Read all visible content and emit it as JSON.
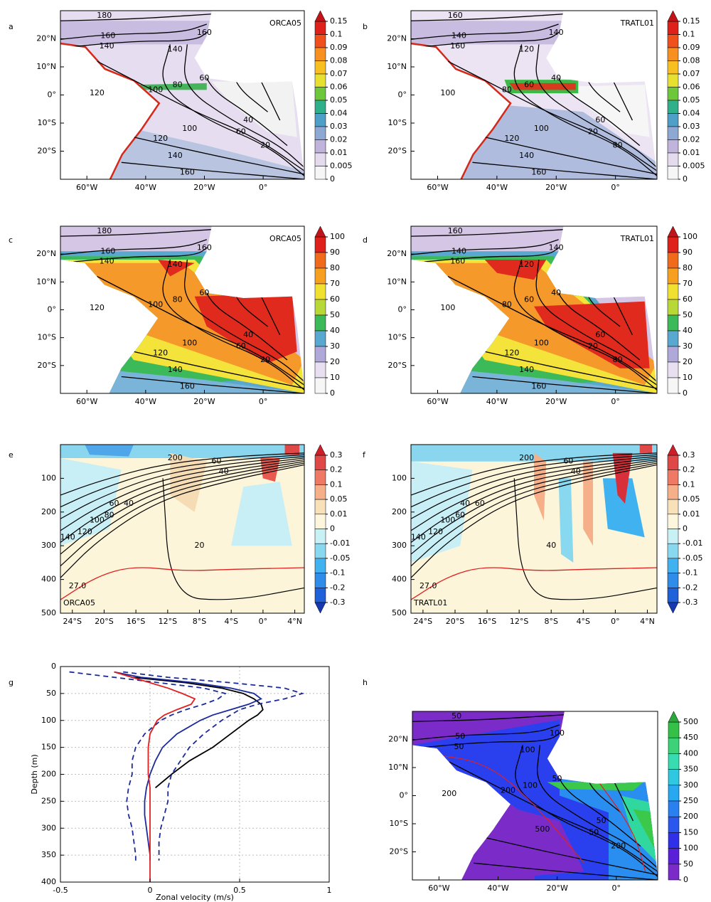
{
  "chart_data": [
    {
      "type": "map",
      "panel": "a",
      "title": "ORCA05",
      "xlim": [
        -69,
        14
      ],
      "ylim": [
        -30,
        30
      ],
      "xticks": [
        {
          "value": -60,
          "label": "60°W"
        },
        {
          "value": -40,
          "label": "40°W"
        },
        {
          "value": -20,
          "label": "20°W"
        },
        {
          "value": 0,
          "label": "0°"
        }
      ],
      "yticks": [
        {
          "value": 20,
          "label": "20°N"
        },
        {
          "value": 10,
          "label": "10°N"
        },
        {
          "value": 0,
          "label": "0°"
        },
        {
          "value": -10,
          "label": "10°S"
        },
        {
          "value": -20,
          "label": "20°S"
        }
      ],
      "colorbar": {
        "levels": [
          0.15,
          0.1,
          0.09,
          0.08,
          0.07,
          0.06,
          0.05,
          0.04,
          0.03,
          0.02,
          0.01,
          0.005,
          0
        ],
        "colors": [
          "#e0201a",
          "#f0501c",
          "#f7901e",
          "#f7c020",
          "#e8e030",
          "#6cc83a",
          "#2fb08a",
          "#4fa0c8",
          "#8ea8d4",
          "#c0b4dc",
          "#e4dcee",
          "#f6f6f6"
        ],
        "over": "#c01418"
      },
      "contour_labels": [
        180,
        160,
        140,
        160,
        140,
        120,
        100,
        80,
        60,
        40,
        60,
        20,
        100,
        120,
        140,
        160
      ]
    },
    {
      "type": "map",
      "panel": "b",
      "title": "TRATL01",
      "xlim": [
        -69,
        14
      ],
      "ylim": [
        -30,
        30
      ],
      "xticks": [
        {
          "value": -60,
          "label": "60°W"
        },
        {
          "value": -40,
          "label": "40°W"
        },
        {
          "value": -20,
          "label": "20°W"
        },
        {
          "value": 0,
          "label": "0°"
        }
      ],
      "yticks": [
        {
          "value": 20,
          "label": "20°N"
        },
        {
          "value": 10,
          "label": "10°N"
        },
        {
          "value": 0,
          "label": "0°"
        },
        {
          "value": -10,
          "label": "10°S"
        },
        {
          "value": -20,
          "label": "20°S"
        }
      ],
      "colorbar": {
        "levels": [
          0.15,
          0.1,
          0.09,
          0.08,
          0.07,
          0.06,
          0.05,
          0.04,
          0.03,
          0.02,
          0.01,
          0.005,
          0
        ],
        "colors": [
          "#e0201a",
          "#f0501c",
          "#f7901e",
          "#f7c020",
          "#e8e030",
          "#6cc83a",
          "#2fb08a",
          "#4fa0c8",
          "#8ea8d4",
          "#c0b4dc",
          "#e4dcee",
          "#f6f6f6"
        ],
        "over": "#c01418"
      },
      "contour_labels": [
        160,
        140,
        160,
        140,
        120,
        100,
        80,
        60,
        40,
        60,
        20,
        80,
        100,
        120,
        140,
        160
      ]
    },
    {
      "type": "map",
      "panel": "c",
      "title": "ORCA05",
      "xlim": [
        -69,
        14
      ],
      "ylim": [
        -30,
        30
      ],
      "xticks": [
        {
          "value": -60,
          "label": "60°W"
        },
        {
          "value": -40,
          "label": "40°W"
        },
        {
          "value": -20,
          "label": "20°W"
        },
        {
          "value": 0,
          "label": "0°"
        }
      ],
      "yticks": [
        {
          "value": 20,
          "label": "20°N"
        },
        {
          "value": 10,
          "label": "10°N"
        },
        {
          "value": 0,
          "label": "0°"
        },
        {
          "value": -10,
          "label": "10°S"
        },
        {
          "value": -20,
          "label": "20°S"
        }
      ],
      "colorbar": {
        "levels": [
          100,
          90,
          80,
          70,
          60,
          50,
          40,
          30,
          20,
          10,
          0
        ],
        "colors": [
          "#e0201a",
          "#f06a1c",
          "#f7a020",
          "#f0e030",
          "#b8d838",
          "#3cba5a",
          "#58a8d0",
          "#b0a8d8",
          "#e8e0f0",
          "#f6f6f6"
        ],
        "over": "#c01418"
      },
      "contour_labels": [
        180,
        160,
        140,
        160,
        140,
        120,
        100,
        80,
        60,
        40,
        60,
        20,
        100,
        120,
        140,
        160
      ]
    },
    {
      "type": "map",
      "panel": "d",
      "title": "TRATL01",
      "xlim": [
        -69,
        14
      ],
      "ylim": [
        -30,
        30
      ],
      "xticks": [
        {
          "value": -60,
          "label": "60°W"
        },
        {
          "value": -40,
          "label": "40°W"
        },
        {
          "value": -20,
          "label": "20°W"
        },
        {
          "value": 0,
          "label": "0°"
        }
      ],
      "yticks": [
        {
          "value": 20,
          "label": "20°N"
        },
        {
          "value": 10,
          "label": "10°N"
        },
        {
          "value": 0,
          "label": "0°"
        },
        {
          "value": -10,
          "label": "10°S"
        },
        {
          "value": -20,
          "label": "20°S"
        }
      ],
      "colorbar": {
        "levels": [
          100,
          90,
          80,
          70,
          60,
          50,
          40,
          30,
          20,
          10,
          0
        ],
        "colors": [
          "#e0201a",
          "#f06a1c",
          "#f7a020",
          "#f0e030",
          "#b8d838",
          "#3cba5a",
          "#58a8d0",
          "#b0a8d8",
          "#e8e0f0",
          "#f6f6f6"
        ],
        "over": "#c01418"
      },
      "contour_labels": [
        160,
        140,
        160,
        140,
        120,
        100,
        80,
        60,
        40,
        60,
        20,
        80,
        100,
        120,
        140,
        160
      ]
    },
    {
      "type": "section",
      "panel": "e",
      "title": "ORCA05",
      "xlim": [
        -25.5,
        5.2
      ],
      "ylim": [
        0,
        500
      ],
      "y_inverted": true,
      "xticks": [
        {
          "value": -24,
          "label": "24°S"
        },
        {
          "value": -20,
          "label": "20°S"
        },
        {
          "value": -16,
          "label": "16°S"
        },
        {
          "value": -12,
          "label": "12°S"
        },
        {
          "value": -8,
          "label": "8°S"
        },
        {
          "value": -4,
          "label": "4°S"
        },
        {
          "value": 0,
          "label": "0°"
        },
        {
          "value": 4,
          "label": "4°N"
        }
      ],
      "yticks": [
        100,
        200,
        300,
        400,
        500
      ],
      "colorbar": {
        "levels": [
          0.3,
          0.2,
          0.1,
          0.05,
          0.01,
          0,
          -0.01,
          -0.05,
          -0.1,
          -0.2,
          -0.3
        ],
        "colors": [
          "#e04848",
          "#ee7a66",
          "#f5b08a",
          "#f8e0b8",
          "#fdf6dc",
          "#c8f0f5",
          "#88d8f0",
          "#3fb2ef",
          "#2f8ce8",
          "#2060d8"
        ],
        "over": "#cc1f2a",
        "under": "#1838b0"
      },
      "contour_labels": [
        200,
        60,
        40,
        140,
        120,
        100,
        80,
        60,
        40,
        20,
        "27.0"
      ]
    },
    {
      "type": "section",
      "panel": "f",
      "title": "TRATL01",
      "xlim": [
        -25.5,
        5.2
      ],
      "ylim": [
        0,
        500
      ],
      "y_inverted": true,
      "xticks": [
        {
          "value": -24,
          "label": "24°S"
        },
        {
          "value": -20,
          "label": "20°S"
        },
        {
          "value": -16,
          "label": "16°S"
        },
        {
          "value": -12,
          "label": "12°S"
        },
        {
          "value": -8,
          "label": "8°S"
        },
        {
          "value": -4,
          "label": "4°S"
        },
        {
          "value": 0,
          "label": "0°"
        },
        {
          "value": 4,
          "label": "4°N"
        }
      ],
      "yticks": [
        100,
        200,
        300,
        400,
        500
      ],
      "colorbar": {
        "levels": [
          0.3,
          0.2,
          0.1,
          0.05,
          0.01,
          0,
          -0.01,
          -0.05,
          -0.1,
          -0.2,
          -0.3
        ],
        "colors": [
          "#e04848",
          "#ee7a66",
          "#f5b08a",
          "#f8e0b8",
          "#fdf6dc",
          "#c8f0f5",
          "#88d8f0",
          "#3fb2ef",
          "#2f8ce8",
          "#2060d8"
        ],
        "over": "#cc1f2a",
        "under": "#1838b0"
      },
      "contour_labels": [
        200,
        60,
        40,
        140,
        120,
        100,
        60,
        40,
        60,
        40,
        "27.0"
      ]
    },
    {
      "type": "line",
      "panel": "g",
      "xlabel": "Zonal velocity (m/s)",
      "ylabel": "Depth (m)",
      "xlim": [
        -0.5,
        1
      ],
      "ylim": [
        0,
        400
      ],
      "y_inverted": true,
      "grid": true,
      "xticks": [
        -0.5,
        0,
        0.5,
        1
      ],
      "yticks": [
        0,
        50,
        100,
        150,
        200,
        250,
        300,
        350,
        400
      ],
      "y": [
        10,
        20,
        30,
        40,
        50,
        60,
        70,
        80,
        90,
        100,
        125,
        150,
        175,
        200,
        225,
        250,
        275,
        300,
        325,
        350,
        360,
        400
      ],
      "series": [
        {
          "color": "#000000",
          "dashed": false,
          "values": [
            -0.2,
            -0.1,
            0.2,
            0.4,
            0.52,
            0.58,
            0.62,
            0.63,
            0.6,
            0.55,
            0.45,
            0.35,
            0.22,
            0.12,
            0.03,
            null,
            null,
            null,
            null,
            null,
            null,
            null
          ]
        },
        {
          "color": "#1a2a9a",
          "dashed": false,
          "values": [
            -0.2,
            -0.05,
            0.25,
            0.45,
            0.58,
            0.62,
            0.55,
            0.45,
            0.35,
            0.28,
            0.15,
            0.07,
            0.03,
            0.0,
            -0.02,
            -0.03,
            -0.03,
            -0.02,
            -0.01,
            0.0,
            0.0,
            null
          ]
        },
        {
          "color": "#1a2a9a",
          "dashed": true,
          "values": [
            -0.15,
            0.1,
            0.45,
            0.75,
            0.85,
            0.75,
            0.6,
            0.5,
            0.45,
            0.4,
            0.3,
            0.22,
            0.17,
            0.12,
            0.1,
            0.1,
            0.08,
            0.06,
            0.05,
            0.05,
            0.05,
            null
          ]
        },
        {
          "color": "#1a2a9a",
          "dashed": true,
          "values": [
            -0.45,
            -0.2,
            0.05,
            0.3,
            0.42,
            0.38,
            0.3,
            0.2,
            0.12,
            0.06,
            -0.03,
            -0.08,
            -0.1,
            -0.1,
            -0.12,
            -0.13,
            -0.12,
            -0.1,
            -0.09,
            -0.08,
            -0.08,
            null
          ]
        },
        {
          "color": "#e02020",
          "dashed": false,
          "values": [
            -0.2,
            -0.1,
            0.0,
            0.1,
            0.18,
            0.25,
            0.23,
            0.15,
            0.08,
            0.04,
            0.0,
            -0.01,
            -0.01,
            -0.01,
            0.0,
            0.0,
            0.0,
            0.0,
            0.0,
            0.0,
            0.0,
            0.0
          ]
        }
      ]
    },
    {
      "type": "map",
      "panel": "h",
      "xlim": [
        -69,
        14
      ],
      "ylim": [
        -30,
        30
      ],
      "xticks": [
        {
          "value": -60,
          "label": "60°W"
        },
        {
          "value": -40,
          "label": "40°W"
        },
        {
          "value": -20,
          "label": "20°W"
        },
        {
          "value": 0,
          "label": "0°"
        }
      ],
      "yticks": [
        {
          "value": 20,
          "label": "20°N"
        },
        {
          "value": 10,
          "label": "10°N"
        },
        {
          "value": 0,
          "label": "0°"
        },
        {
          "value": -10,
          "label": "10°S"
        },
        {
          "value": -20,
          "label": "20°S"
        }
      ],
      "colorbar": {
        "levels": [
          500,
          450,
          400,
          350,
          300,
          250,
          200,
          150,
          100,
          50,
          0
        ],
        "colors": [
          "#35c048",
          "#3bd27a",
          "#38dcb0",
          "#30c8e0",
          "#28a8f0",
          "#2a80f0",
          "#2a58ee",
          "#3030e8",
          "#5a20d8",
          "#7b2cc8"
        ],
        "over": "#2aa83a"
      },
      "contour_labels": [
        50,
        50,
        50,
        100,
        100,
        200,
        200,
        100,
        50,
        50,
        50,
        200,
        500
      ]
    }
  ]
}
